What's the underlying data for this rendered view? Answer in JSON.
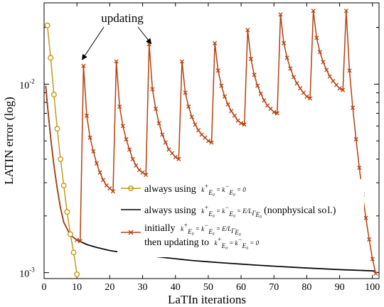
{
  "chart_data": {
    "type": "line",
    "xlabel": "LaTIn iterations",
    "ylabel": "LATIN error (log)",
    "xlim": [
      0,
      102
    ],
    "ylim": [
      0.00093,
      0.027
    ],
    "yscale": "log",
    "x_ticks": [
      0,
      10,
      20,
      30,
      40,
      50,
      60,
      70,
      80,
      90,
      100
    ],
    "y_ticks": [
      {
        "value": 0.001,
        "label": "10",
        "exp": "-3"
      },
      {
        "value": 0.01,
        "label": "10",
        "exp": "-2"
      }
    ],
    "grid": false,
    "legend_position": "center-right",
    "annotation": {
      "text": "updating",
      "arrow_targets": [
        [
          11.6,
          0.0135
        ],
        [
          32.6,
          0.0164
        ]
      ]
    },
    "series": [
      {
        "name": "always using k+ = k- = 0",
        "color": "#c49a16",
        "marker": "circle",
        "x": [
          1,
          2,
          3,
          4,
          5,
          6,
          7,
          8,
          9,
          10
        ],
        "values": [
          0.0205,
          0.0138,
          0.0088,
          0.0058,
          0.004,
          0.0029,
          0.0021,
          0.0016,
          0.00128,
          0.00098
        ]
      },
      {
        "name": "always using k+ = k- = E/L (nonphysical sol.)",
        "color": "#000000",
        "marker": "none",
        "x": [
          0.5,
          1,
          2,
          3,
          4,
          5,
          6,
          8,
          10,
          13,
          16,
          20,
          25,
          30,
          35,
          40,
          45,
          50,
          55,
          60,
          65,
          70,
          75,
          80,
          85,
          90,
          95,
          101
        ],
        "values": [
          0.0098,
          0.0078,
          0.0052,
          0.0037,
          0.0028,
          0.0022,
          0.00185,
          0.00158,
          0.00149,
          0.00141,
          0.00136,
          0.00131,
          0.00127,
          0.00124,
          0.00121,
          0.001185,
          0.00116,
          0.001142,
          0.001125,
          0.00111,
          0.001095,
          0.001082,
          0.00107,
          0.001058,
          0.001048,
          0.001038,
          0.00103,
          0.00102
        ]
      },
      {
        "name": "initially k+ = k- = E/L, then updating to k+ = k- = 0",
        "color": "#b5400f",
        "marker": "x",
        "x": [
          0.5,
          1,
          2,
          3,
          4,
          5,
          6,
          8,
          10,
          11,
          12,
          13,
          14,
          15,
          16,
          17,
          18,
          19,
          20,
          21,
          22,
          23,
          24,
          25,
          26,
          27,
          28,
          29,
          30,
          31,
          32,
          33,
          34,
          35,
          36,
          37,
          38,
          39,
          40,
          41,
          42,
          43,
          44,
          45,
          46,
          47,
          48,
          49,
          50,
          51,
          52,
          53,
          54,
          55,
          56,
          57,
          58,
          59,
          60,
          61,
          62,
          63,
          64,
          65,
          66,
          67,
          68,
          69,
          70,
          71,
          72,
          73,
          74,
          75,
          76,
          77,
          78,
          79,
          80,
          81,
          82,
          83,
          84,
          85,
          86,
          87,
          88,
          89,
          90,
          91,
          92,
          93,
          94,
          95,
          96,
          97,
          98,
          99,
          100,
          101
        ],
        "values": [
          0.0098,
          0.0078,
          0.0052,
          0.0037,
          0.0028,
          0.0022,
          0.00185,
          0.00158,
          0.00149,
          0.00147,
          0.0125,
          0.0068,
          0.0052,
          0.0044,
          0.0038,
          0.0034,
          0.0031,
          0.0029,
          0.0028,
          0.0027,
          0.0132,
          0.0076,
          0.006,
          0.0051,
          0.0045,
          0.004,
          0.0037,
          0.0035,
          0.0034,
          0.0033,
          0.0163,
          0.0094,
          0.0074,
          0.0062,
          0.0054,
          0.0049,
          0.0045,
          0.0043,
          0.0041,
          0.004,
          0.0132,
          0.009,
          0.0076,
          0.0067,
          0.0061,
          0.0057,
          0.0054,
          0.0052,
          0.005,
          0.0049,
          0.0165,
          0.0118,
          0.0098,
          0.0086,
          0.0078,
          0.0072,
          0.0068,
          0.0064,
          0.0062,
          0.0061,
          0.0194,
          0.0136,
          0.0112,
          0.0098,
          0.0089,
          0.0082,
          0.0077,
          0.0074,
          0.0071,
          0.007,
          0.0234,
          0.0165,
          0.0138,
          0.0121,
          0.0109,
          0.0101,
          0.0095,
          0.009,
          0.0086,
          0.0084,
          0.0245,
          0.0176,
          0.0148,
          0.0131,
          0.0119,
          0.011,
          0.0104,
          0.0099,
          0.0095,
          0.0093,
          0.0245,
          0.0118,
          0.0075,
          0.0051,
          0.0036,
          0.0026,
          0.00195,
          0.0015,
          0.00118,
          0.00099
        ]
      }
    ]
  }
}
